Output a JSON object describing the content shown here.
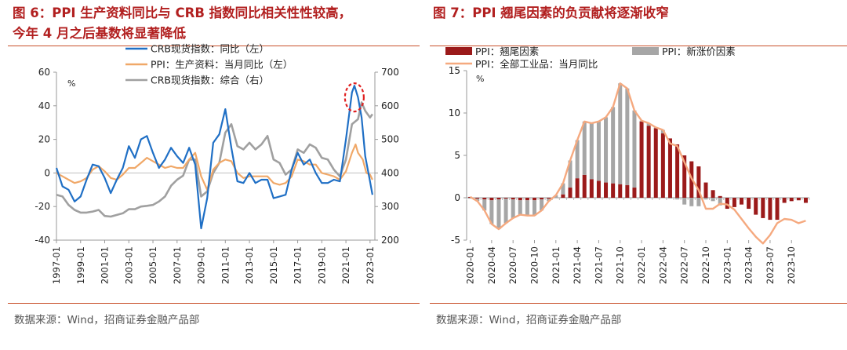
{
  "left": {
    "title_line1": "图 6：PPI 生产资料同比与 CRB 指数同比相关性性较高，",
    "title_line2": "今年 4 月之后基数将显著降低",
    "source": "数据来源：Wind，招商证券金融产品部"
  },
  "right": {
    "title": "图 7：PPI 翘尾因素的负贡献将逐渐收窄",
    "source": "数据来源：Wind，招商证券金融产品部"
  },
  "chart_data": [
    {
      "type": "line",
      "y_unit_label": "%",
      "ylim_left": [
        -40,
        60
      ],
      "yticks_left": [
        -40,
        -20,
        0,
        20,
        40,
        60
      ],
      "ylim_right": [
        200,
        700
      ],
      "yticks_right": [
        200,
        300,
        400,
        500,
        600,
        700
      ],
      "x_tick_labels": [
        "1997-01",
        "1999-01",
        "2001-01",
        "2003-01",
        "2005-01",
        "2007-01",
        "2009-01",
        "2011-01",
        "2013-01",
        "2015-01",
        "2017-01",
        "2019-01",
        "2021-01",
        "2023-01"
      ],
      "legend_position": "top-center",
      "annotation": "red dashed circle around CRB peak near 2021-2022",
      "series": [
        {
          "name": "CRB现货指数：同比（左）",
          "axis": "left",
          "color": "#1f6fc5",
          "points": [
            [
              1997.0,
              3
            ],
            [
              1997.5,
              -8
            ],
            [
              1998.0,
              -10
            ],
            [
              1998.5,
              -17
            ],
            [
              1999.0,
              -14
            ],
            [
              1999.5,
              -4
            ],
            [
              2000.0,
              5
            ],
            [
              2000.5,
              4
            ],
            [
              2001.0,
              -3
            ],
            [
              2001.5,
              -12
            ],
            [
              2002.0,
              -4
            ],
            [
              2002.5,
              3
            ],
            [
              2003.0,
              16
            ],
            [
              2003.5,
              9
            ],
            [
              2004.0,
              20
            ],
            [
              2004.5,
              22
            ],
            [
              2005.0,
              12
            ],
            [
              2005.5,
              3
            ],
            [
              2006.0,
              8
            ],
            [
              2006.5,
              15
            ],
            [
              2007.0,
              10
            ],
            [
              2007.5,
              6
            ],
            [
              2008.0,
              15
            ],
            [
              2008.5,
              5
            ],
            [
              2009.0,
              -33
            ],
            [
              2009.5,
              -15
            ],
            [
              2010.0,
              18
            ],
            [
              2010.5,
              23
            ],
            [
              2011.0,
              38
            ],
            [
              2011.5,
              15
            ],
            [
              2012.0,
              -5
            ],
            [
              2012.5,
              -6
            ],
            [
              2013.0,
              0
            ],
            [
              2013.5,
              -6
            ],
            [
              2014.0,
              -4
            ],
            [
              2014.5,
              -4
            ],
            [
              2015.0,
              -15
            ],
            [
              2015.5,
              -14
            ],
            [
              2016.0,
              -13
            ],
            [
              2016.5,
              2
            ],
            [
              2017.0,
              12
            ],
            [
              2017.5,
              5
            ],
            [
              2018.0,
              8
            ],
            [
              2018.5,
              0
            ],
            [
              2019.0,
              -6
            ],
            [
              2019.5,
              -6
            ],
            [
              2020.0,
              -4
            ],
            [
              2020.5,
              -5
            ],
            [
              2021.0,
              20
            ],
            [
              2021.5,
              48
            ],
            [
              2021.7,
              52
            ],
            [
              2022.0,
              45
            ],
            [
              2022.3,
              33
            ],
            [
              2022.6,
              10
            ],
            [
              2023.0,
              -5
            ],
            [
              2023.2,
              -13
            ]
          ]
        },
        {
          "name": "PPI：生产资料：当月同比（左）",
          "axis": "left",
          "color": "#f0a868",
          "points": [
            [
              1997.0,
              0
            ],
            [
              1997.5,
              -2
            ],
            [
              1998.0,
              -4
            ],
            [
              1998.5,
              -6
            ],
            [
              1999.0,
              -5
            ],
            [
              1999.5,
              -3
            ],
            [
              2000.0,
              2
            ],
            [
              2000.5,
              4
            ],
            [
              2001.0,
              1
            ],
            [
              2001.5,
              -3
            ],
            [
              2002.0,
              -4
            ],
            [
              2002.5,
              -1
            ],
            [
              2003.0,
              3
            ],
            [
              2003.5,
              3
            ],
            [
              2004.0,
              6
            ],
            [
              2004.5,
              9
            ],
            [
              2005.0,
              7
            ],
            [
              2005.5,
              5
            ],
            [
              2006.0,
              3
            ],
            [
              2006.5,
              4
            ],
            [
              2007.0,
              3
            ],
            [
              2007.5,
              3
            ],
            [
              2008.0,
              8
            ],
            [
              2008.5,
              12
            ],
            [
              2009.0,
              -2
            ],
            [
              2009.5,
              -10
            ],
            [
              2010.0,
              2
            ],
            [
              2010.5,
              6
            ],
            [
              2011.0,
              8
            ],
            [
              2011.5,
              7
            ],
            [
              2012.0,
              0
            ],
            [
              2012.5,
              -3
            ],
            [
              2013.0,
              -2
            ],
            [
              2013.5,
              -2
            ],
            [
              2014.0,
              -2
            ],
            [
              2014.5,
              -2
            ],
            [
              2015.0,
              -6
            ],
            [
              2015.5,
              -7
            ],
            [
              2016.0,
              -6
            ],
            [
              2016.5,
              -2
            ],
            [
              2017.0,
              8
            ],
            [
              2017.5,
              7
            ],
            [
              2018.0,
              5
            ],
            [
              2018.5,
              5
            ],
            [
              2019.0,
              0
            ],
            [
              2019.5,
              -1
            ],
            [
              2020.0,
              -2
            ],
            [
              2020.5,
              -4
            ],
            [
              2021.0,
              1
            ],
            [
              2021.5,
              12
            ],
            [
              2021.8,
              17
            ],
            [
              2022.0,
              12
            ],
            [
              2022.4,
              8
            ],
            [
              2022.7,
              0
            ],
            [
              2023.0,
              -1
            ],
            [
              2023.2,
              -4
            ]
          ]
        },
        {
          "name": "CRB现货指数：综合（右）",
          "axis": "right",
          "color": "#a0a0a0",
          "points": [
            [
              1997.0,
              335
            ],
            [
              1997.5,
              330
            ],
            [
              1998.0,
              305
            ],
            [
              1998.5,
              290
            ],
            [
              1999.0,
              282
            ],
            [
              1999.5,
              282
            ],
            [
              2000.0,
              285
            ],
            [
              2000.5,
              290
            ],
            [
              2001.0,
              272
            ],
            [
              2001.5,
              270
            ],
            [
              2002.0,
              275
            ],
            [
              2002.5,
              280
            ],
            [
              2003.0,
              292
            ],
            [
              2003.5,
              292
            ],
            [
              2004.0,
              300
            ],
            [
              2004.5,
              302
            ],
            [
              2005.0,
              305
            ],
            [
              2005.5,
              315
            ],
            [
              2006.0,
              330
            ],
            [
              2006.5,
              362
            ],
            [
              2007.0,
              380
            ],
            [
              2007.5,
              392
            ],
            [
              2008.0,
              440
            ],
            [
              2008.5,
              440
            ],
            [
              2009.0,
              330
            ],
            [
              2009.5,
              345
            ],
            [
              2010.0,
              400
            ],
            [
              2010.5,
              430
            ],
            [
              2011.0,
              520
            ],
            [
              2011.5,
              545
            ],
            [
              2012.0,
              480
            ],
            [
              2012.5,
              470
            ],
            [
              2013.0,
              490
            ],
            [
              2013.5,
              470
            ],
            [
              2014.0,
              485
            ],
            [
              2014.5,
              510
            ],
            [
              2015.0,
              440
            ],
            [
              2015.5,
              430
            ],
            [
              2016.0,
              395
            ],
            [
              2016.5,
              410
            ],
            [
              2017.0,
              470
            ],
            [
              2017.5,
              460
            ],
            [
              2018.0,
              485
            ],
            [
              2018.5,
              475
            ],
            [
              2019.0,
              445
            ],
            [
              2019.5,
              440
            ],
            [
              2020.0,
              410
            ],
            [
              2020.5,
              390
            ],
            [
              2021.0,
              440
            ],
            [
              2021.5,
              545
            ],
            [
              2022.0,
              560
            ],
            [
              2022.3,
              610
            ],
            [
              2022.6,
              585
            ],
            [
              2023.0,
              565
            ],
            [
              2023.2,
              575
            ]
          ]
        }
      ]
    },
    {
      "type": "bar",
      "stacked": true,
      "y_unit_label": "%",
      "ylim": [
        -5,
        15
      ],
      "yticks": [
        -5,
        0,
        5,
        10,
        15
      ],
      "x_tick_labels": [
        "2020-01",
        "2020-04",
        "2020-07",
        "2020-10",
        "2021-01",
        "2021-04",
        "2021-07",
        "2021-10",
        "2022-01",
        "2022-04",
        "2022-07",
        "2022-10",
        "2023-01",
        "2023-04",
        "2023-07",
        "2023-10"
      ],
      "legend_position": "top",
      "categories": [
        "2020-01",
        "2020-02",
        "2020-03",
        "2020-04",
        "2020-05",
        "2020-06",
        "2020-07",
        "2020-08",
        "2020-09",
        "2020-10",
        "2020-11",
        "2020-12",
        "2021-01",
        "2021-02",
        "2021-03",
        "2021-04",
        "2021-05",
        "2021-06",
        "2021-07",
        "2021-08",
        "2021-09",
        "2021-10",
        "2021-11",
        "2021-12",
        "2022-01",
        "2022-02",
        "2022-03",
        "2022-04",
        "2022-05",
        "2022-06",
        "2022-07",
        "2022-08",
        "2022-09",
        "2022-10",
        "2022-11",
        "2022-12",
        "2023-01",
        "2023-02",
        "2023-03",
        "2023-04",
        "2023-05",
        "2023-06",
        "2023-07",
        "2023-08",
        "2023-09",
        "2023-10",
        "2023-11",
        "2023-12"
      ],
      "series": [
        {
          "name": "PPI：翘尾因素",
          "type": "bar",
          "color": "#9b1a1a",
          "values": [
            0.1,
            -0.1,
            -0.2,
            -0.3,
            -0.2,
            -0.1,
            -0.2,
            -0.3,
            -0.3,
            -0.3,
            -0.2,
            -0.1,
            0.0,
            0.4,
            1.2,
            2.3,
            2.7,
            2.2,
            2.0,
            1.8,
            1.7,
            1.6,
            1.5,
            1.2,
            9.0,
            8.5,
            8.2,
            7.6,
            7.0,
            6.3,
            5.0,
            4.3,
            3.7,
            1.8,
            0.9,
            0.2,
            -1.3,
            -1.1,
            -0.8,
            -1.3,
            -2.0,
            -2.4,
            -2.6,
            -2.6,
            -0.6,
            -0.4,
            -0.3,
            -0.6
          ]
        },
        {
          "name": "PPI：新涨价因素",
          "type": "bar",
          "color": "#a6a6a6",
          "values": [
            -0.1,
            -0.3,
            -1.3,
            -2.8,
            -3.5,
            -2.9,
            -2.2,
            -1.7,
            -1.8,
            -1.8,
            -1.3,
            -0.3,
            0.3,
            1.3,
            3.2,
            4.5,
            6.3,
            6.6,
            7.0,
            7.7,
            9.0,
            11.9,
            11.4,
            9.1,
            0.1,
            0.3,
            0.1,
            0.4,
            -0.1,
            -0.2,
            -0.8,
            -1.0,
            -1.0,
            -0.2,
            -0.4,
            -0.9,
            0.0,
            0.0,
            0.0,
            0.0,
            0.0,
            0.0,
            0.0,
            0.0,
            0.0,
            0.0,
            0.0,
            0.0
          ]
        },
        {
          "name": "PPI：全部工业品：当月同比",
          "type": "line",
          "color": "#f5a97f",
          "values": [
            0.1,
            -0.4,
            -1.5,
            -3.1,
            -3.7,
            -3.0,
            -2.4,
            -2.0,
            -2.1,
            -2.1,
            -1.5,
            -0.4,
            0.3,
            1.7,
            4.4,
            6.8,
            9.0,
            8.8,
            9.0,
            9.5,
            10.7,
            13.5,
            12.9,
            10.3,
            9.1,
            8.8,
            8.3,
            8.0,
            6.4,
            6.1,
            4.2,
            2.3,
            0.9,
            -1.3,
            -1.3,
            -0.7,
            -0.8,
            -1.4,
            -2.5,
            -3.6,
            -4.6,
            -5.4,
            -4.4,
            -3.0,
            -2.5,
            -2.6,
            -3.0,
            -2.7
          ]
        }
      ]
    }
  ]
}
